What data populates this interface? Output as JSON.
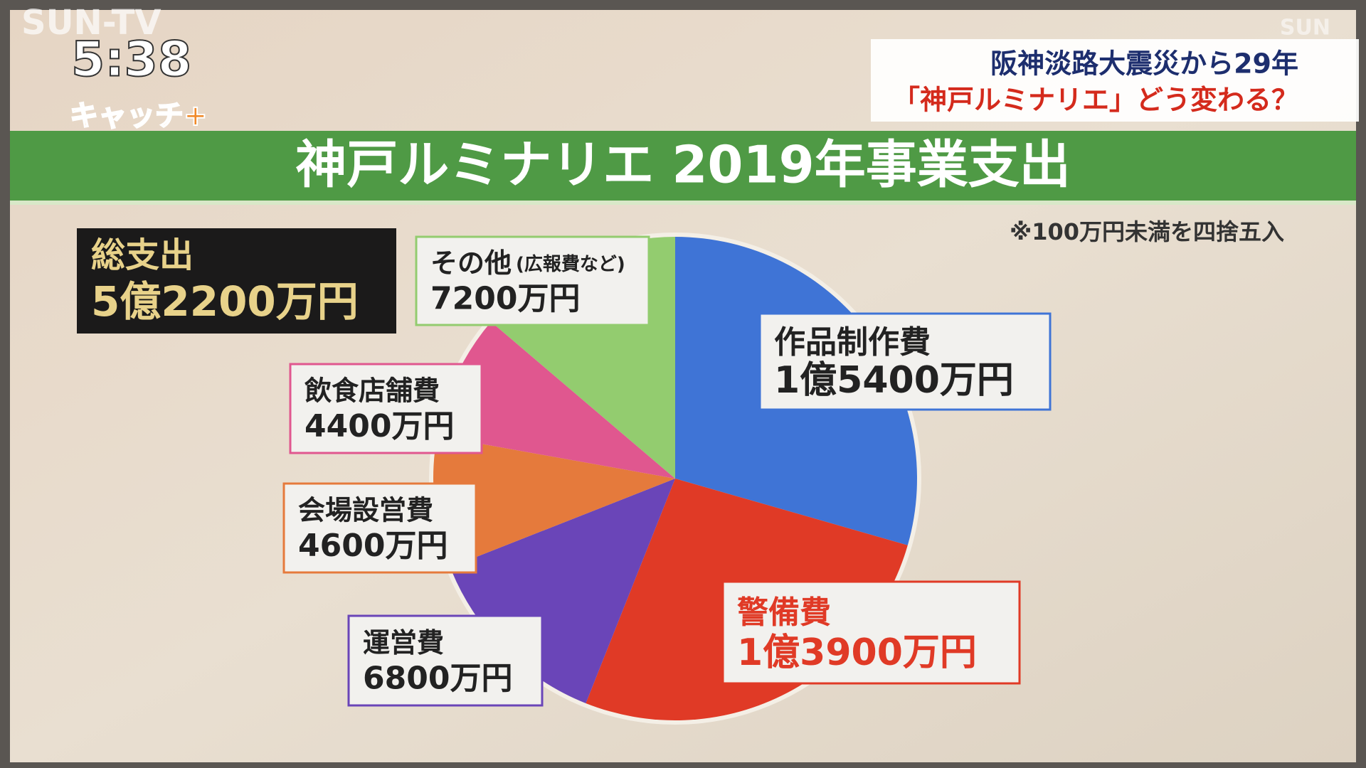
{
  "chart_data": {
    "type": "pie",
    "title": "神戸ルミナリエ 2019年事業支出",
    "note": "※100万円未満を四捨五入",
    "total_label": "総支出",
    "total_value_label": "5億2200万円",
    "categories": [
      "作品制作費",
      "警備費",
      "運営費",
      "会場設営費",
      "飲食店舗費",
      "その他"
    ],
    "category_note": "(広報費など)",
    "values": [
      15400,
      13900,
      6800,
      4600,
      4400,
      7200
    ],
    "value_labels": [
      "1億5400万円",
      "1億3900万円",
      "6800万円",
      "4600万円",
      "4400万円",
      "7200万円"
    ],
    "colors": [
      "#3f74d6",
      "#e03a26",
      "#6a45b8",
      "#e57a3c",
      "#e0578f",
      "#93cc6f"
    ]
  },
  "overlay": {
    "channel": "SUN-TV",
    "channel_corner": "SUN",
    "time": "5:38",
    "program": "キャッチ+",
    "headline": [
      "阪神淡路大震災から29年",
      "「神戸ルミナリエ」どう変わる？"
    ]
  }
}
